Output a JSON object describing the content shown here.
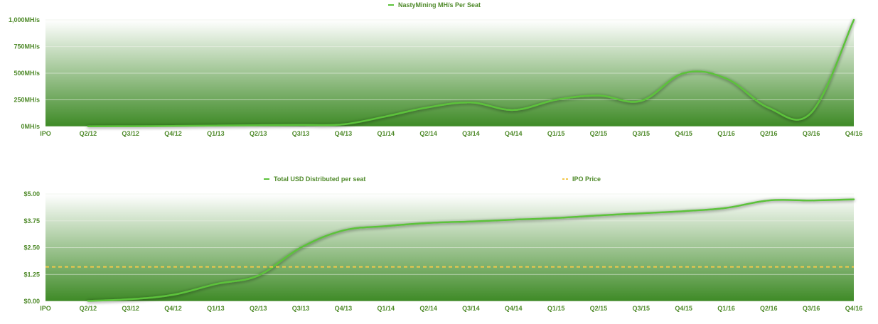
{
  "colors": {
    "line": "#5cc23b",
    "line_dark": "#4a8f2e",
    "area_top": "#ffffff",
    "area_bottom": "#3e8a26",
    "ipo_price": "#f2c84b",
    "text": "#4f8a2a",
    "grid": "#e9efe4"
  },
  "chart_data": [
    {
      "type": "area",
      "title": "",
      "legend": [
        {
          "name": "NastyMining MH/s Per Seat",
          "style": "solid"
        }
      ],
      "legend_position": "top-center",
      "categories": [
        "IPO",
        "Q2/12",
        "Q3/12",
        "Q4/12",
        "Q1/13",
        "Q2/13",
        "Q3/13",
        "Q4/13",
        "Q1/14",
        "Q2/14",
        "Q3/14",
        "Q4/14",
        "Q1/15",
        "Q2/15",
        "Q3/15",
        "Q4/15",
        "Q1/16",
        "Q2/16",
        "Q3/16",
        "Q4/16"
      ],
      "series": [
        {
          "name": "NastyMining MH/s Per Seat",
          "values": [
            null,
            2,
            3,
            5,
            8,
            12,
            15,
            20,
            95,
            180,
            225,
            155,
            250,
            290,
            240,
            500,
            450,
            175,
            130,
            1000
          ]
        }
      ],
      "yticks": [
        {
          "value": 0,
          "label": "0MH/s"
        },
        {
          "value": 250,
          "label": "250MH/s"
        },
        {
          "value": 500,
          "label": "500MH/s"
        },
        {
          "value": 750,
          "label": "750MH/s"
        },
        {
          "value": 1000,
          "label": "1,000MH/s"
        }
      ],
      "ylim": [
        0,
        1000
      ],
      "grid": true
    },
    {
      "type": "area",
      "title": "",
      "legend": [
        {
          "name": "Total USD Distributed per seat",
          "style": "solid"
        },
        {
          "name": "IPO Price",
          "style": "dashed"
        }
      ],
      "legend_position": "top-center",
      "categories": [
        "IPO",
        "Q2/12",
        "Q3/12",
        "Q4/12",
        "Q1/13",
        "Q2/13",
        "Q3/13",
        "Q4/13",
        "Q1/14",
        "Q2/14",
        "Q3/14",
        "Q4/14",
        "Q1/15",
        "Q2/15",
        "Q3/15",
        "Q4/15",
        "Q1/16",
        "Q2/16",
        "Q3/16",
        "Q4/16"
      ],
      "series": [
        {
          "name": "Total USD Distributed per seat",
          "values": [
            null,
            0.02,
            0.1,
            0.3,
            0.8,
            1.2,
            2.5,
            3.3,
            3.5,
            3.65,
            3.72,
            3.8,
            3.88,
            4.0,
            4.1,
            4.2,
            4.35,
            4.7,
            4.7,
            4.75
          ]
        },
        {
          "name": "IPO Price",
          "constant": 1.6
        }
      ],
      "yticks": [
        {
          "value": 0,
          "label": "$0.00"
        },
        {
          "value": 1.25,
          "label": "$1.25"
        },
        {
          "value": 2.5,
          "label": "$2.50"
        },
        {
          "value": 3.75,
          "label": "$3.75"
        },
        {
          "value": 5,
          "label": "$5.00"
        }
      ],
      "ylim": [
        0,
        5
      ],
      "grid": true
    }
  ]
}
